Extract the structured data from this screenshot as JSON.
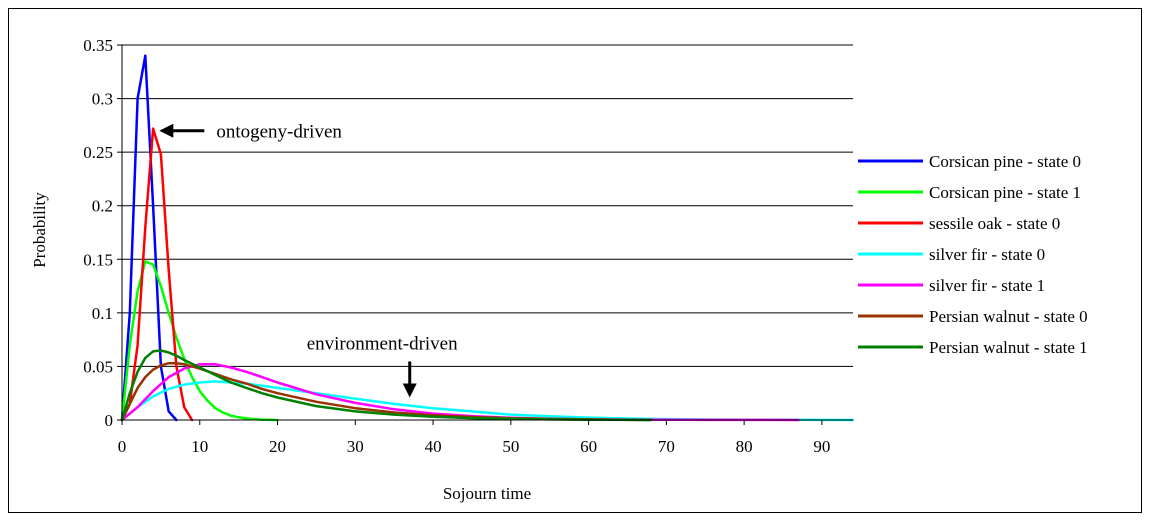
{
  "chart_data": {
    "type": "line",
    "title": "",
    "xlabel": "Sojourn time",
    "ylabel": "Probability",
    "xlim": [
      0,
      94
    ],
    "ylim": [
      0,
      0.35
    ],
    "x_ticks": [
      0,
      10,
      20,
      30,
      40,
      50,
      60,
      70,
      80,
      90
    ],
    "y_ticks": [
      0,
      0.05,
      0.1,
      0.15,
      0.2,
      0.25,
      0.3,
      0.35
    ],
    "y_tick_labels": [
      "0",
      "0.05",
      "0.1",
      "0.15",
      "0.2",
      "0.25",
      "0.3",
      "0.35"
    ],
    "grid": "horizontal",
    "legend_position": "right",
    "series": [
      {
        "name": "Corsican pine - state 0",
        "color": "#0000ff",
        "x": [
          0,
          1,
          2,
          3,
          4,
          5,
          6,
          7
        ],
        "y": [
          0,
          0.1,
          0.3,
          0.34,
          0.2,
          0.05,
          0.008,
          0
        ]
      },
      {
        "name": "Corsican pine - state 1",
        "color": "#00ff00",
        "x": [
          0,
          1,
          2,
          3,
          4,
          5,
          6,
          7,
          8,
          9,
          10,
          11,
          12,
          13,
          14,
          15,
          16,
          17,
          18,
          19,
          20
        ],
        "y": [
          0,
          0.07,
          0.12,
          0.148,
          0.145,
          0.125,
          0.1,
          0.077,
          0.057,
          0.04,
          0.027,
          0.018,
          0.011,
          0.007,
          0.004,
          0.0025,
          0.0015,
          0.0008,
          0.0004,
          0.0002,
          0
        ]
      },
      {
        "name": "sessile oak - state 0",
        "color": "#ff0000",
        "x": [
          0,
          1,
          2,
          3,
          4,
          5,
          6,
          7,
          8,
          9
        ],
        "y": [
          0,
          0.015,
          0.07,
          0.18,
          0.272,
          0.248,
          0.14,
          0.05,
          0.012,
          0
        ]
      },
      {
        "name": "silver fir - state 0",
        "color": "#00ffff",
        "x": [
          0,
          2,
          4,
          6,
          8,
          10,
          12,
          14,
          16,
          18,
          20,
          25,
          30,
          35,
          40,
          45,
          50,
          55,
          60,
          65,
          70,
          75,
          80,
          85,
          90,
          94
        ],
        "y": [
          0,
          0.012,
          0.022,
          0.029,
          0.033,
          0.035,
          0.036,
          0.035,
          0.034,
          0.032,
          0.03,
          0.025,
          0.02,
          0.015,
          0.011,
          0.008,
          0.005,
          0.0035,
          0.0022,
          0.0014,
          0.0008,
          0.0005,
          0.0003,
          0.0002,
          0.0001,
          0
        ]
      },
      {
        "name": "silver fir - state 1",
        "color": "#ff00ff",
        "x": [
          0,
          2,
          4,
          6,
          8,
          10,
          12,
          14,
          16,
          18,
          20,
          25,
          30,
          35,
          40,
          45,
          50,
          55,
          60,
          65,
          70,
          75,
          80,
          87
        ],
        "y": [
          0,
          0.012,
          0.027,
          0.04,
          0.048,
          0.052,
          0.052,
          0.049,
          0.045,
          0.04,
          0.035,
          0.024,
          0.016,
          0.01,
          0.006,
          0.0036,
          0.0021,
          0.0012,
          0.0007,
          0.0004,
          0.0002,
          0.0001,
          5e-05,
          0
        ]
      },
      {
        "name": "Persian walnut - state 0",
        "color": "#993300",
        "x": [
          0,
          1,
          2,
          3,
          4,
          5,
          6,
          7,
          8,
          10,
          12,
          14,
          16,
          18,
          20,
          25,
          30,
          35,
          40,
          45,
          50,
          55,
          60,
          68
        ],
        "y": [
          0,
          0.015,
          0.03,
          0.04,
          0.047,
          0.051,
          0.053,
          0.053,
          0.052,
          0.048,
          0.043,
          0.038,
          0.034,
          0.029,
          0.025,
          0.017,
          0.011,
          0.007,
          0.0045,
          0.0028,
          0.0017,
          0.001,
          0.0006,
          0
        ]
      },
      {
        "name": "Persian walnut - state 1",
        "color": "#008000",
        "x": [
          0,
          1,
          2,
          3,
          4,
          5,
          6,
          7,
          8,
          10,
          12,
          14,
          16,
          18,
          20,
          25,
          30,
          35,
          40,
          45,
          50,
          55,
          60,
          68
        ],
        "y": [
          0,
          0.025,
          0.045,
          0.058,
          0.064,
          0.065,
          0.063,
          0.06,
          0.056,
          0.049,
          0.042,
          0.035,
          0.03,
          0.025,
          0.021,
          0.013,
          0.008,
          0.005,
          0.003,
          0.0018,
          0.0011,
          0.0006,
          0.0003,
          0
        ]
      }
    ],
    "annotations": [
      {
        "text": "ontogeny-driven",
        "arrow_tip_x": 4.8,
        "arrow_tip_y": 0.27,
        "direction": "left"
      },
      {
        "text": "environment-driven",
        "arrow_tip_x": 37,
        "arrow_tip_y": 0.021,
        "direction": "down"
      }
    ]
  }
}
